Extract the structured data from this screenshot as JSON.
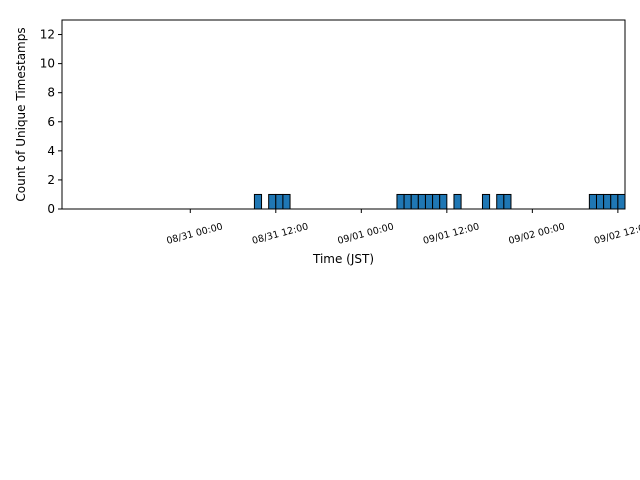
{
  "chart_data": {
    "type": "bar",
    "title": "",
    "xlabel": "Time (JST)",
    "ylabel": "Count of Unique Timestamps",
    "x_axis": {
      "range": [
        "2024-08-30 06:00",
        "2024-09-02 13:00"
      ],
      "ticks": [
        "08/31 00:00",
        "08/31 12:00",
        "09/01 00:00",
        "09/01 12:00",
        "09/02 00:00",
        "09/02 12:00"
      ],
      "tick_times": [
        "2024-08-31 00:00",
        "2024-08-31 12:00",
        "2024-09-01 00:00",
        "2024-09-01 12:00",
        "2024-09-02 00:00",
        "2024-09-02 12:00"
      ]
    },
    "y_axis": {
      "range": [
        0,
        13
      ],
      "ticks": [
        "0",
        "2",
        "4",
        "6",
        "8",
        "10",
        "12"
      ],
      "tick_values": [
        0,
        2,
        4,
        6,
        8,
        10,
        12
      ]
    },
    "grid": false,
    "bin_hours": 1,
    "bars": [
      {
        "start": "2024-08-31 09:00",
        "value": 1
      },
      {
        "start": "2024-08-31 11:00",
        "value": 1
      },
      {
        "start": "2024-08-31 12:00",
        "value": 1
      },
      {
        "start": "2024-08-31 13:00",
        "value": 1
      },
      {
        "start": "2024-09-01 02:00",
        "value": 0
      },
      {
        "start": "2024-09-01 05:00",
        "value": 1
      },
      {
        "start": "2024-09-01 06:00",
        "value": 1
      },
      {
        "start": "2024-09-01 07:00",
        "value": 1
      },
      {
        "start": "2024-09-01 08:00",
        "value": 1
      },
      {
        "start": "2024-09-01 09:00",
        "value": 1
      },
      {
        "start": "2024-09-01 10:00",
        "value": 1
      },
      {
        "start": "2024-09-01 11:00",
        "value": 1
      },
      {
        "start": "2024-09-01 13:00",
        "value": 1
      },
      {
        "start": "2024-09-01 17:00",
        "value": 1
      },
      {
        "start": "2024-09-01 19:00",
        "value": 1
      },
      {
        "start": "2024-09-01 20:00",
        "value": 1
      },
      {
        "start": "2024-09-02 08:00",
        "value": 1
      },
      {
        "start": "2024-09-02 09:00",
        "value": 1
      },
      {
        "start": "2024-09-02 10:00",
        "value": 1
      },
      {
        "start": "2024-09-02 11:00",
        "value": 1
      },
      {
        "start": "2024-09-02 12:00",
        "value": 1
      }
    ],
    "colors": {
      "bar_fill": "#1f77b4",
      "bar_edge": "#000000",
      "axis": "#000000"
    }
  }
}
